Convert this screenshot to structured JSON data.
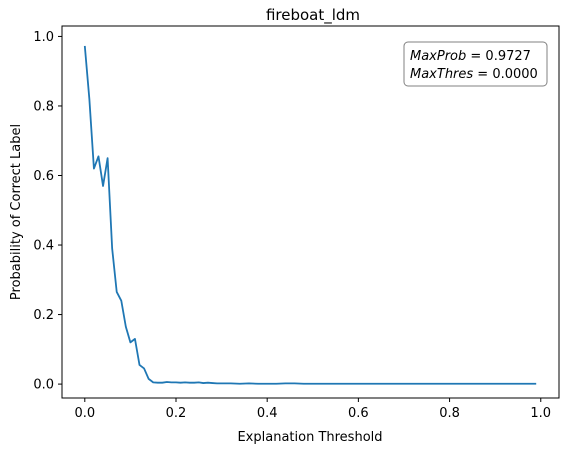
{
  "chart_data": {
    "type": "line",
    "title": "fireboat_ldm",
    "xlabel": "Explanation Threshold",
    "ylabel": "Probability of Correct Label",
    "xlim": [
      -0.05,
      1.04
    ],
    "ylim": [
      -0.04,
      1.03
    ],
    "x_ticks": [
      0.0,
      0.2,
      0.4,
      0.6,
      0.8,
      1.0
    ],
    "x_tick_labels": [
      "0.0",
      "0.2",
      "0.4",
      "0.6",
      "0.8",
      "1.0"
    ],
    "y_ticks": [
      0.0,
      0.2,
      0.4,
      0.6,
      0.8,
      1.0
    ],
    "y_tick_labels": [
      "0.0",
      "0.2",
      "0.4",
      "0.6",
      "0.8",
      "1.0"
    ],
    "grid": false,
    "line_color": "#1f77b4",
    "annotation": {
      "line1_key": "MaxProb",
      "line1_value": " = 0.9727",
      "line2_key": "MaxThres",
      "line2_value": " = 0.0000",
      "position": "top-right"
    },
    "series": [
      {
        "x": [
          0.0,
          0.01,
          0.02,
          0.03,
          0.04,
          0.05,
          0.06,
          0.07,
          0.08,
          0.09,
          0.1,
          0.11,
          0.12,
          0.13,
          0.14,
          0.15,
          0.16,
          0.17,
          0.18,
          0.19,
          0.2,
          0.21,
          0.22,
          0.23,
          0.24,
          0.25,
          0.26,
          0.27,
          0.28,
          0.29,
          0.3,
          0.32,
          0.34,
          0.36,
          0.38,
          0.4,
          0.42,
          0.44,
          0.46,
          0.48,
          0.5,
          0.55,
          0.6,
          0.65,
          0.7,
          0.75,
          0.8,
          0.85,
          0.9,
          0.95,
          0.99
        ],
        "y": [
          0.9727,
          0.82,
          0.62,
          0.655,
          0.57,
          0.65,
          0.39,
          0.265,
          0.24,
          0.165,
          0.12,
          0.13,
          0.055,
          0.045,
          0.015,
          0.005,
          0.004,
          0.004,
          0.006,
          0.005,
          0.005,
          0.004,
          0.005,
          0.004,
          0.004,
          0.005,
          0.003,
          0.004,
          0.003,
          0.002,
          0.002,
          0.002,
          0.001,
          0.002,
          0.001,
          0.001,
          0.001,
          0.002,
          0.002,
          0.001,
          0.001,
          0.001,
          0.001,
          0.001,
          0.001,
          0.001,
          0.001,
          0.001,
          0.001,
          0.001,
          0.001
        ]
      }
    ]
  }
}
